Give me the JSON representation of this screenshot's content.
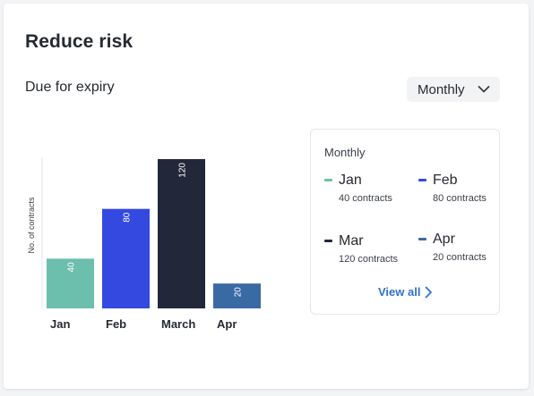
{
  "card": {
    "title": "Reduce risk",
    "subtitle": "Due for expiry",
    "period_dropdown": {
      "selected": "Monthly",
      "icon": "chevron-down-icon"
    }
  },
  "chart_data": {
    "type": "bar",
    "categories": [
      "Jan",
      "Feb",
      "March",
      "Apr"
    ],
    "values": [
      40,
      80,
      120,
      20
    ],
    "colors": [
      "#6dbfad",
      "#3349e0",
      "#22283a",
      "#3a6aa3"
    ],
    "title": "",
    "xlabel": "",
    "ylabel": "No. of contracts",
    "ylim": [
      0,
      120
    ],
    "grid": false,
    "data_labels": true,
    "legend_placement": "right"
  },
  "legend": {
    "title": "Monthly",
    "items": [
      {
        "label": "Jan",
        "count": "40 contracts",
        "color": "#6dbfad"
      },
      {
        "label": "Feb",
        "count": "80 contracts",
        "color": "#3349e0"
      },
      {
        "label": "Mar",
        "count": "120 contracts",
        "color": "#22283a"
      },
      {
        "label": "Apr",
        "count": "20 contracts",
        "color": "#3a6aa3"
      }
    ],
    "view_all": "View all"
  }
}
